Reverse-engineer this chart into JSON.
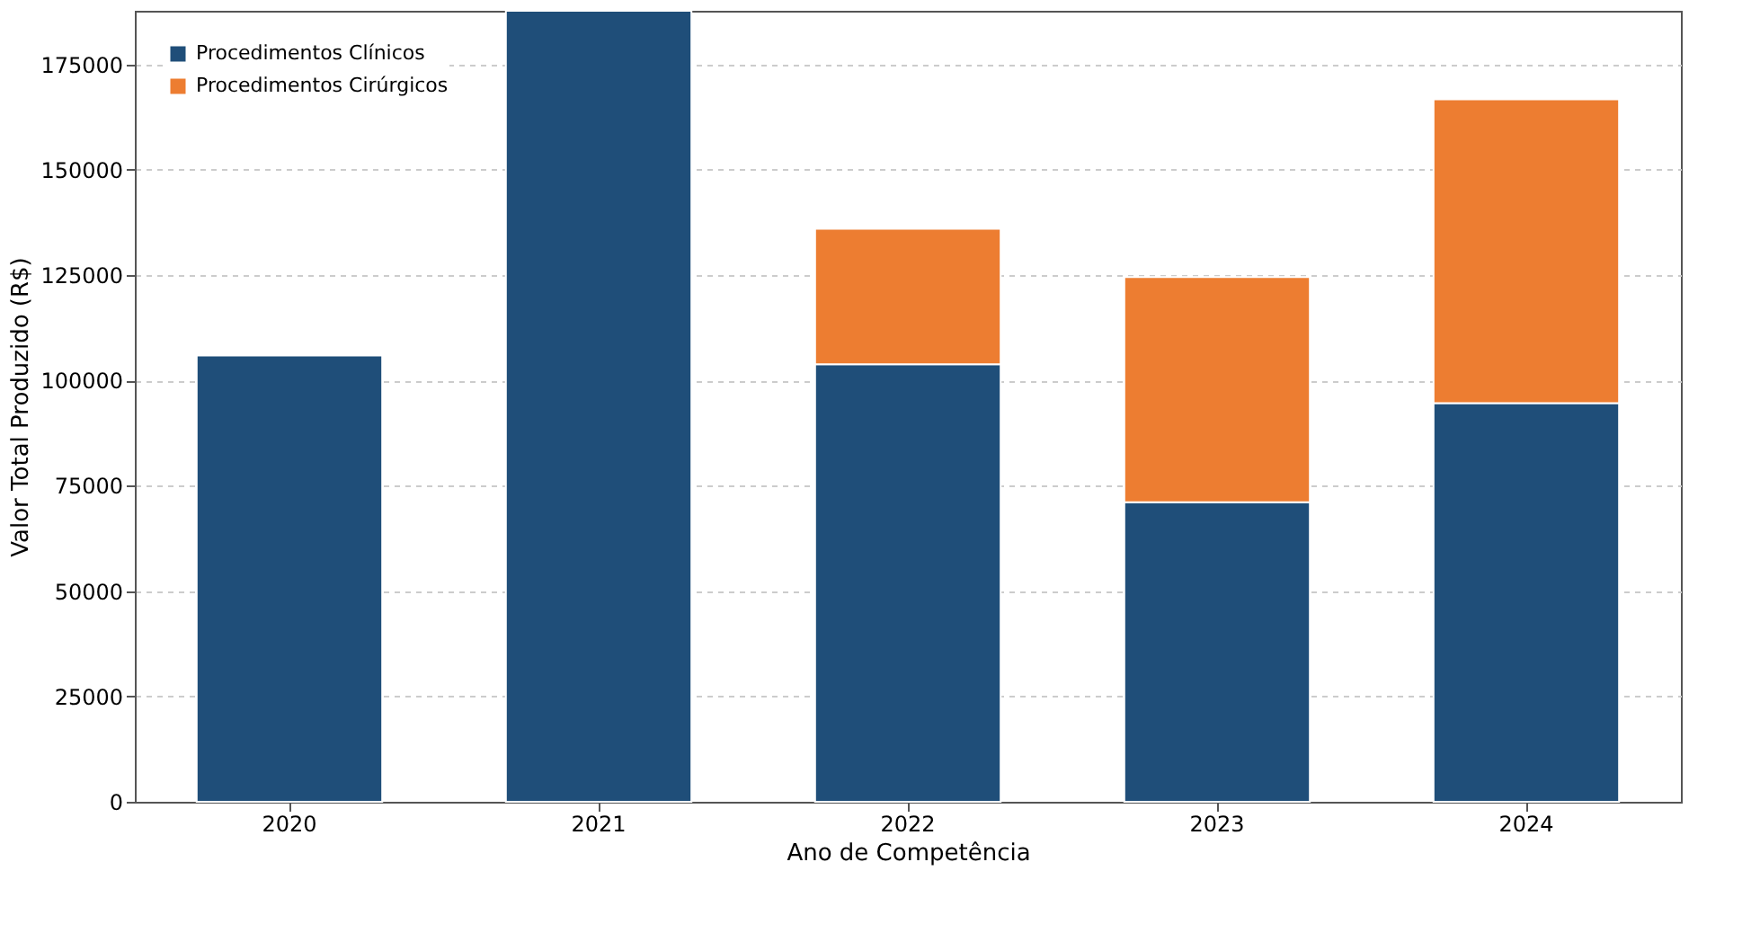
{
  "chart_data": {
    "type": "bar",
    "stacked": true,
    "xlabel": "Ano de Competência",
    "ylabel": "Valor Total Produzido (R$)",
    "categories": [
      "2020",
      "2021",
      "2022",
      "2023",
      "2024"
    ],
    "series": [
      {
        "name": "Procedimentos Clínicos",
        "color": "#1f4e79",
        "values": [
          105900,
          187700,
          103800,
          71100,
          94600
        ]
      },
      {
        "name": "Procedimentos Cirúrgicos",
        "color": "#ed7d31",
        "values": [
          null,
          null,
          32200,
          53400,
          72100
        ]
      }
    ],
    "ylim": [
      0,
      187700
    ],
    "yticks": [
      0,
      25000,
      50000,
      75000,
      100000,
      125000,
      150000,
      175000
    ],
    "grid": "y",
    "legend": "top left"
  }
}
